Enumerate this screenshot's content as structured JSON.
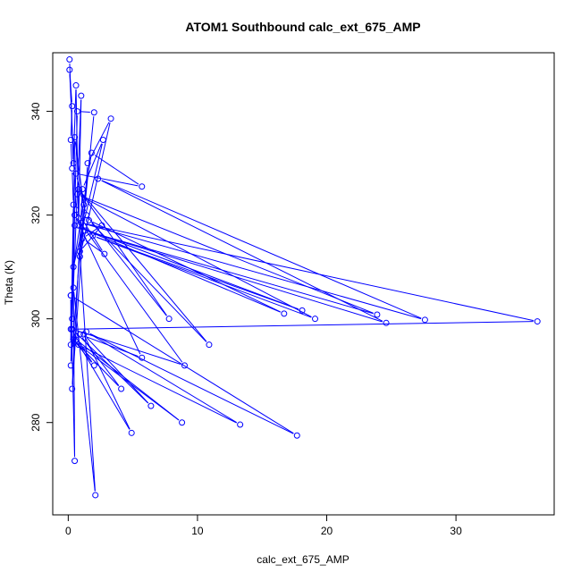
{
  "chart_data": {
    "type": "line",
    "title": "ATOM1 Southbound calc_ext_675_AMP",
    "xlabel": "calc_ext_675_AMP",
    "ylabel": "Theta (K)",
    "xlim": [
      -1.2,
      37.6
    ],
    "ylim": [
      262.2,
      351.3
    ],
    "x_ticks": [
      0,
      10,
      20,
      30
    ],
    "y_ticks": [
      280,
      300,
      320,
      340
    ],
    "x_tick_labels": [
      "0",
      "10",
      "20",
      "30"
    ],
    "y_tick_labels": [
      "280",
      "300",
      "320",
      "340"
    ],
    "grid": false,
    "legend": "none",
    "series_color": "#0000ff",
    "series": [
      {
        "points": [
          [
            0.1,
            350.0
          ],
          [
            0.4,
            330.0
          ],
          [
            0.6,
            345.0
          ],
          [
            0.8,
            318.0
          ],
          [
            1.0,
            343.0
          ],
          [
            0.3,
            300.0
          ],
          [
            0.5,
            335.0
          ],
          [
            1.2,
            322.0
          ],
          [
            0.2,
            291.0
          ],
          [
            0.7,
            340.0
          ],
          [
            2.0,
            339.8
          ],
          [
            0.9,
            312.0
          ],
          [
            3.3,
            338.6
          ],
          [
            1.5,
            330.0
          ],
          [
            0.3,
            286.5
          ],
          [
            1.1,
            325.0
          ],
          [
            2.7,
            334.5
          ],
          [
            0.4,
            310.0
          ],
          [
            1.8,
            332.0
          ],
          [
            5.7,
            325.5
          ],
          [
            0.6,
            328.0
          ],
          [
            1.4,
            320.0
          ],
          [
            7.8,
            300.0
          ],
          [
            0.8,
            325.0
          ],
          [
            10.9,
            295.0
          ],
          [
            1.6,
            319.0
          ],
          [
            16.7,
            301.0
          ],
          [
            0.5,
            318.0
          ],
          [
            18.1,
            301.6
          ],
          [
            1.9,
            316.0
          ],
          [
            19.1,
            300.0
          ],
          [
            0.7,
            324.0
          ],
          [
            23.9,
            300.8
          ],
          [
            1.3,
            317.0
          ],
          [
            24.6,
            299.2
          ],
          [
            2.3,
            327.0
          ],
          [
            27.6,
            299.8
          ],
          [
            1.0,
            318.5
          ],
          [
            36.3,
            299.5
          ],
          [
            0.2,
            298.0
          ],
          [
            2.0,
            291.0
          ],
          [
            0.4,
            296.0
          ],
          [
            4.1,
            286.5
          ],
          [
            0.9,
            297.0
          ],
          [
            5.7,
            292.5
          ],
          [
            0.5,
            320.0
          ],
          [
            9.0,
            291.0
          ],
          [
            0.3,
            298.0
          ],
          [
            6.4,
            283.2
          ],
          [
            1.2,
            297.0
          ],
          [
            4.9,
            278.0
          ],
          [
            0.6,
            296.0
          ],
          [
            8.8,
            280.0
          ],
          [
            0.8,
            295.0
          ],
          [
            13.3,
            279.6
          ],
          [
            1.4,
            297.5
          ],
          [
            17.7,
            277.5
          ],
          [
            0.2,
            304.5
          ],
          [
            0.5,
            272.6
          ],
          [
            0.4,
            306.0
          ],
          [
            2.1,
            266.0
          ],
          [
            0.9,
            313.0
          ],
          [
            2.6,
            318.0
          ],
          [
            1.1,
            315.5
          ],
          [
            2.8,
            312.5
          ],
          [
            0.6,
            321.0
          ],
          [
            0.1,
            348.0
          ],
          [
            0.3,
            341.0
          ],
          [
            0.2,
            334.5
          ],
          [
            0.3,
            329.0
          ],
          [
            0.4,
            322.0
          ],
          [
            0.2,
            295.0
          ],
          [
            0.2,
            304.5
          ]
        ]
      }
    ]
  }
}
